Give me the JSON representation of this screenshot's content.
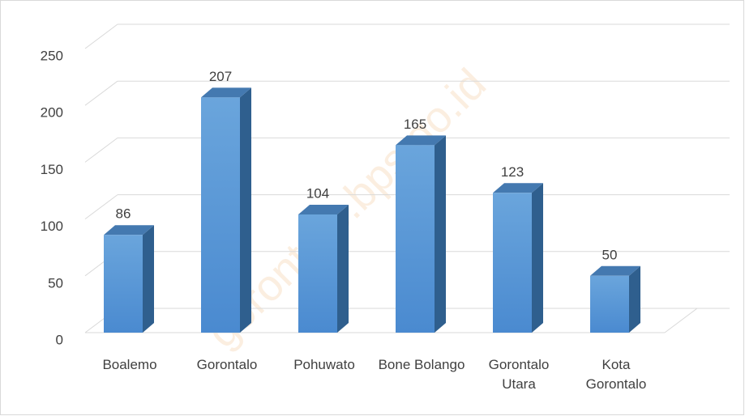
{
  "chart_data": {
    "type": "bar",
    "watermark": "gorontalo.bps.go.id",
    "categories": [
      "Boalemo",
      "Gorontalo",
      "Pohuwato",
      "Bone Bolango",
      "Gorontalo Utara",
      "Kota Gorontalo"
    ],
    "values": [
      86,
      207,
      104,
      165,
      123,
      50
    ],
    "color": "#5b9bd5",
    "ylim": [
      0,
      250
    ],
    "yticks": [
      0,
      50,
      100,
      150,
      200,
      250
    ],
    "grid": true
  }
}
